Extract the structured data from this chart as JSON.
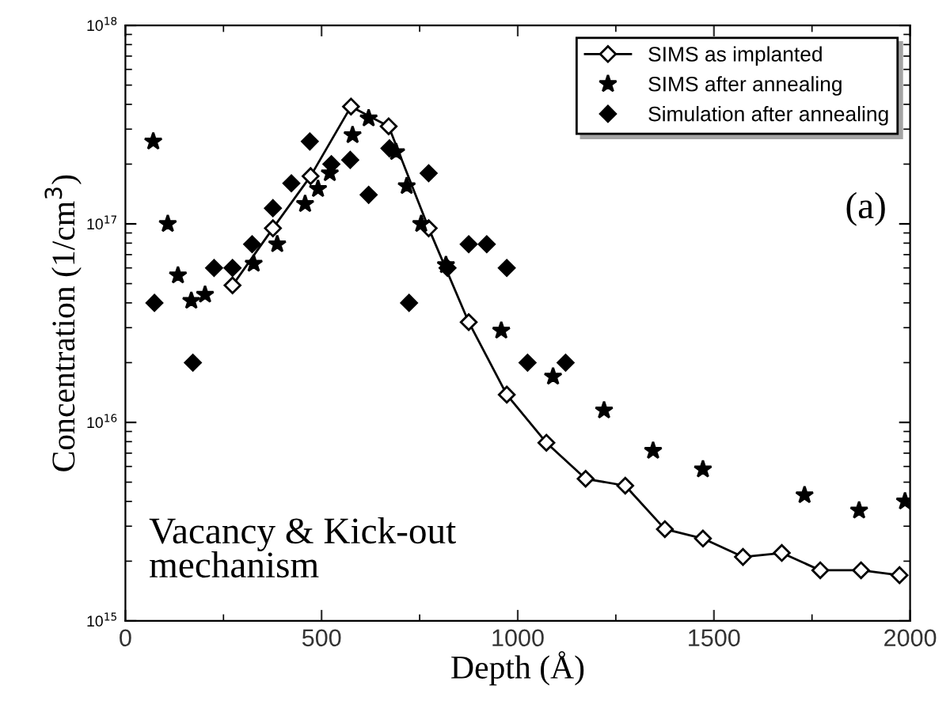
{
  "chart_data": {
    "type": "line",
    "xlabel": "Depth (Å)",
    "ylabel": "Concentration (1/cm$^{3}$)",
    "xlim": [
      0,
      2000
    ],
    "xticks": [
      0,
      500,
      1000,
      1500,
      2000
    ],
    "log": "y",
    "ylim": [
      1000000000000000.0,
      1e+18
    ],
    "yticks": [
      {
        "value": 1000000000000000.0,
        "label": "10$^{15}$"
      },
      {
        "value": 1e+16,
        "label": "10$^{16}$"
      },
      {
        "value": 1e+17,
        "label": "10$^{17}$"
      },
      {
        "value": 1e+18,
        "label": "10$^{18}$"
      }
    ],
    "grid": false,
    "legend": "top right",
    "annotations": [
      "(a)",
      "Vacancy & Kick-out\nmechanism"
    ],
    "series": [
      {
        "name": "SIMS as implanted",
        "marker": "diamond",
        "line_style": "solid",
        "color": "#000000",
        "x": [
          273,
          376,
          472,
          575,
          671,
          773,
          875,
          972,
          1073,
          1173,
          1274,
          1375,
          1472,
          1574,
          1673,
          1771,
          1875,
          1973
        ],
        "values": [
          4.9e+16,
          9.5e+16,
          1.74e+17,
          3.9e+17,
          3.1e+17,
          9.5e+16,
          3.2e+16,
          1.38e+16,
          7900000000000000.0,
          5200000000000000.0,
          4800000000000000.0,
          2900000000000000.0,
          2600000000000000.0,
          2100000000000000.0,
          2200000000000000.0,
          1800000000000000.0,
          1800000000000000.0,
          1700000000000000.0
        ]
      },
      {
        "name": "SIMS after annealing",
        "type": "scatter",
        "marker": "star",
        "color": "#000000",
        "x": [
          71,
          108,
          134,
          168,
          203,
          327,
          387,
          458,
          491,
          521,
          579,
          620,
          690,
          717,
          754,
          817,
          958,
          1090,
          1220,
          1345,
          1472,
          1731,
          1870,
          1987
        ],
        "values": [
          2.6e+17,
          1e+17,
          5.5e+16,
          4.1e+16,
          4.4e+16,
          6.3e+16,
          7.9e+16,
          1.26e+17,
          1.5e+17,
          1.8e+17,
          2.8e+17,
          3.4e+17,
          2.3e+17,
          1.55e+17,
          1e+17,
          6.2e+16,
          2.9e+16,
          1.7e+16,
          1.15e+16,
          7200000000000000.0,
          5800000000000000.0,
          4300000000000000.0,
          3600000000000000.0,
          4000000000000000.0
        ]
      },
      {
        "name": "Simulation after annealing",
        "type": "scatter",
        "marker": "diamond",
        "color": "#000000",
        "x": [
          74,
          172,
          226,
          273,
          323,
          376,
          423,
          470,
          525,
          573,
          620,
          673,
          723,
          773,
          821,
          875,
          921,
          972,
          1025,
          1122
        ],
        "values": [
          4e+16,
          2e+16,
          6e+16,
          6e+16,
          7.9e+16,
          1.2e+17,
          1.6e+17,
          2.6e+17,
          2e+17,
          2.1e+17,
          1.4e+17,
          2.4e+17,
          4e+16,
          1.8e+17,
          6e+16,
          7.9e+16,
          7.9e+16,
          6e+16,
          2e+16,
          2e+16
        ]
      }
    ]
  }
}
